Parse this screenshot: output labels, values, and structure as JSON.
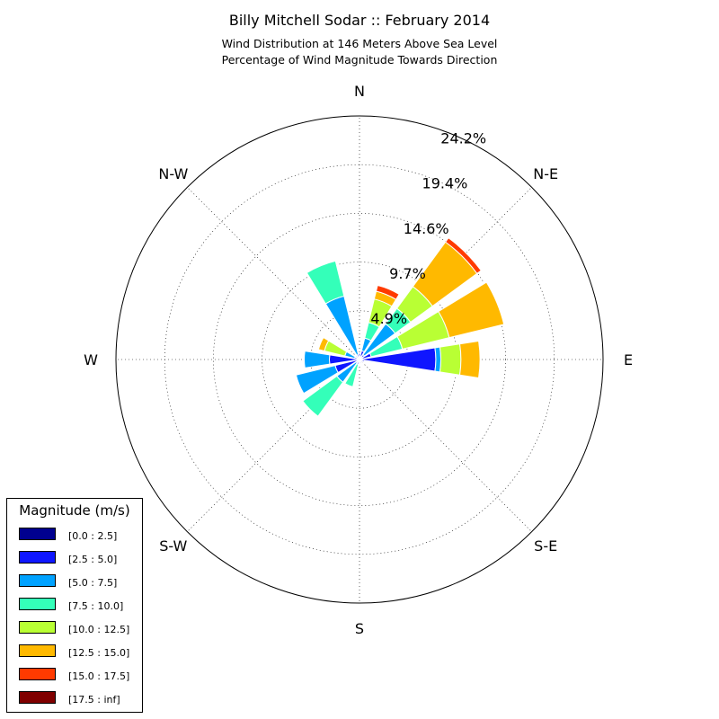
{
  "chart_data": {
    "type": "windrose",
    "title": "Billy Mitchell Sodar :: February 2014",
    "subtitle_lines": [
      "Wind Distribution at 146 Meters Above Sea Level",
      "Percentage of Wind Magnitude Towards Direction"
    ],
    "directions": [
      "N",
      "N-E",
      "E",
      "S-E",
      "S",
      "S-W",
      "W",
      "N-W"
    ],
    "ring_labels": [
      "4.9%",
      "9.7%",
      "14.6%",
      "19.4%",
      "24.2%"
    ],
    "ring_values": [
      4.85,
      9.7,
      14.55,
      19.4,
      24.25
    ],
    "rmax": 24.25,
    "legend_title": "Magnitude (m/s)",
    "bins": [
      {
        "label": "[0.0 : 2.5]",
        "color": "#00008f"
      },
      {
        "label": "[2.5 : 5.0]",
        "color": "#0f16ff"
      },
      {
        "label": "[5.0 : 7.5]",
        "color": "#00a2ff"
      },
      {
        "label": "[7.5 : 10.0]",
        "color": "#34ffb9"
      },
      {
        "label": "[10.0 : 12.5]",
        "color": "#b9ff34"
      },
      {
        "label": "[12.5 : 15.0]",
        "color": "#ffb900"
      },
      {
        "label": "[15.0 : 17.5]",
        "color": "#ff3a00"
      },
      {
        "label": "[17.5 : inf]",
        "color": "#800000"
      }
    ],
    "sectors": [
      {
        "bearing": 0,
        "cumulative": [
          0.2,
          0.6,
          0.6,
          0.6,
          0.6,
          0.6,
          0.6,
          0.6
        ]
      },
      {
        "bearing": 22.5,
        "cumulative": [
          0.3,
          0.9,
          2.2,
          3.8,
          6.2,
          7.0,
          7.6,
          7.6
        ]
      },
      {
        "bearing": 45,
        "cumulative": [
          0.3,
          0.6,
          4.4,
          6.3,
          9.0,
          14.5,
          15.0,
          15.0
        ]
      },
      {
        "bearing": 67.5,
        "cumulative": [
          0.3,
          1.2,
          1.2,
          4.4,
          9.2,
          14.8,
          14.8,
          14.8
        ]
      },
      {
        "bearing": 90,
        "cumulative": [
          0.3,
          7.6,
          8.1,
          8.1,
          10.1,
          12.0,
          12.0,
          12.0
        ]
      },
      {
        "bearing": 112.5,
        "cumulative": [
          0.2,
          0.5,
          0.5,
          0.5,
          0.5,
          0.5,
          0.5,
          0.5
        ]
      },
      {
        "bearing": 135,
        "cumulative": [
          0.2,
          0.4,
          0.4,
          0.4,
          0.4,
          0.4,
          0.4,
          0.4
        ]
      },
      {
        "bearing": 157.5,
        "cumulative": [
          0.2,
          0.4,
          0.4,
          0.4,
          0.4,
          0.4,
          0.4,
          0.4
        ]
      },
      {
        "bearing": 180,
        "cumulative": [
          0.2,
          0.4,
          0.4,
          0.4,
          0.4,
          0.4,
          0.4,
          0.4
        ]
      },
      {
        "bearing": 202.5,
        "cumulative": [
          0.2,
          0.5,
          0.5,
          2.8,
          2.8,
          2.8,
          2.8,
          2.8
        ]
      },
      {
        "bearing": 225,
        "cumulative": [
          0.2,
          0.4,
          2.8,
          7.0,
          7.0,
          7.0,
          7.0,
          7.0
        ]
      },
      {
        "bearing": 247.5,
        "cumulative": [
          0.2,
          2.5,
          6.5,
          6.5,
          6.5,
          6.5,
          6.5,
          6.5
        ]
      },
      {
        "bearing": 270,
        "cumulative": [
          0.2,
          3.0,
          5.5,
          5.5,
          5.5,
          5.5,
          5.5,
          5.5
        ]
      },
      {
        "bearing": 292.5,
        "cumulative": [
          0.2,
          0.5,
          1.5,
          1.5,
          3.6,
          4.2,
          4.2,
          4.2
        ]
      },
      {
        "bearing": 315,
        "cumulative": [
          0.2,
          0.4,
          0.4,
          0.4,
          0.4,
          0.4,
          0.4,
          0.4
        ]
      },
      {
        "bearing": 337.5,
        "cumulative": [
          0.2,
          0.5,
          6.5,
          10.1,
          10.1,
          10.1,
          10.1,
          10.1
        ]
      }
    ],
    "grid": true,
    "legend_position": "bottom-left"
  }
}
